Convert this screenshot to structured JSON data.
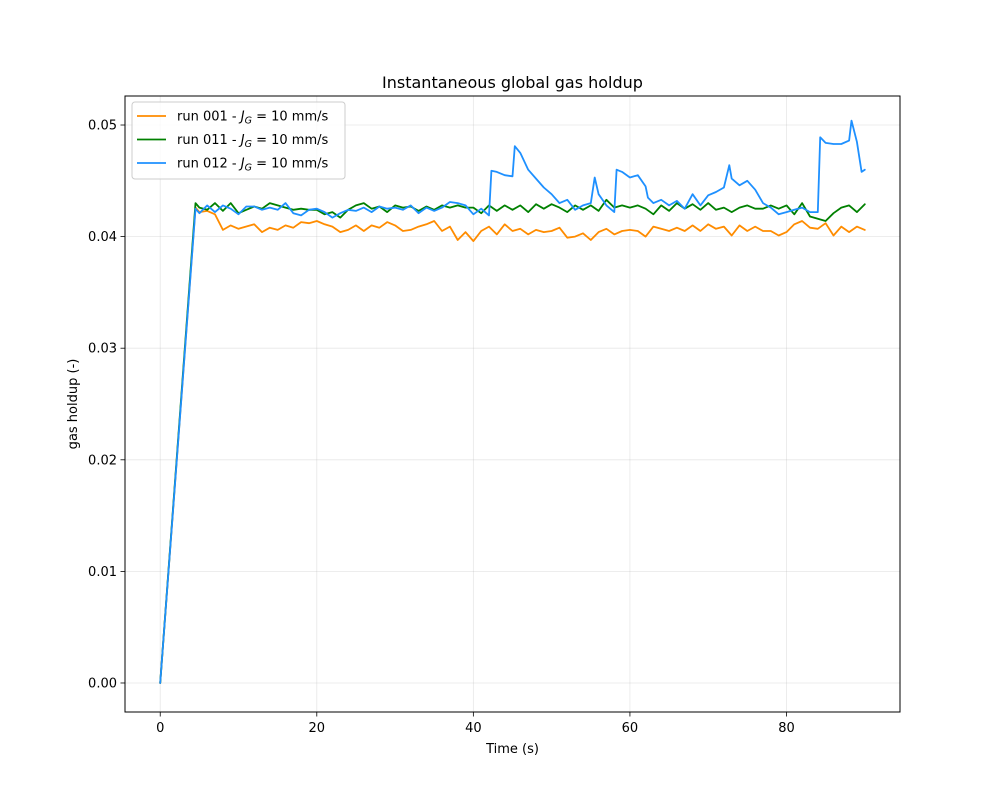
{
  "chart_data": {
    "type": "line",
    "title": "Instantaneous global gas holdup",
    "xlabel": "Time (s)",
    "ylabel": "gas holdup (-)",
    "xlim": [
      -4.5,
      94.5
    ],
    "ylim": [
      -0.0026,
      0.0526
    ],
    "xticks": [
      0,
      20,
      40,
      60,
      80
    ],
    "xtick_labels": [
      "0",
      "20",
      "40",
      "60",
      "80"
    ],
    "yticks": [
      0.0,
      0.01,
      0.02,
      0.03,
      0.04,
      0.05
    ],
    "ytick_labels": [
      "0.00",
      "0.01",
      "0.02",
      "0.03",
      "0.04",
      "0.05"
    ],
    "grid": true,
    "legend_position": "upper-left",
    "series": [
      {
        "name": "run 001 - J_G = 10 mm/s",
        "legend_prefix": "run 001 - ",
        "legend_sym": "J",
        "legend_sub": "G",
        "legend_suffix": " = 10 mm/s",
        "color": "#ff8c00",
        "x": [
          0,
          4.5,
          5,
          6,
          7,
          8,
          9,
          10,
          12,
          13,
          14,
          15,
          16,
          17,
          18,
          19,
          20,
          21,
          22,
          23,
          24,
          25,
          26,
          27,
          28,
          29,
          30,
          31,
          32,
          33,
          34,
          35,
          36,
          37,
          38,
          39,
          40,
          41,
          42,
          43,
          44,
          45,
          46,
          47,
          48,
          49,
          50,
          51,
          52,
          53,
          54,
          55,
          56,
          57,
          58,
          59,
          60,
          61,
          62,
          63,
          64,
          65,
          66,
          67,
          68,
          69,
          70,
          71,
          72,
          73,
          74,
          75,
          76,
          77,
          78,
          79,
          80,
          81,
          82,
          83,
          84,
          85,
          86,
          87,
          88,
          89,
          90
        ],
        "y": [
          0.0,
          0.0426,
          0.0422,
          0.0423,
          0.042,
          0.0406,
          0.041,
          0.0407,
          0.0411,
          0.0404,
          0.0408,
          0.0406,
          0.041,
          0.0408,
          0.0413,
          0.0412,
          0.0414,
          0.0411,
          0.0409,
          0.0404,
          0.0406,
          0.041,
          0.0405,
          0.041,
          0.0408,
          0.0413,
          0.041,
          0.0405,
          0.0406,
          0.0409,
          0.0411,
          0.0414,
          0.0405,
          0.0409,
          0.0397,
          0.0404,
          0.0396,
          0.0405,
          0.0409,
          0.0402,
          0.0411,
          0.0405,
          0.0407,
          0.0402,
          0.0406,
          0.0404,
          0.0405,
          0.0408,
          0.0399,
          0.04,
          0.0403,
          0.0397,
          0.0404,
          0.0407,
          0.0402,
          0.0405,
          0.0406,
          0.0405,
          0.04,
          0.0409,
          0.0407,
          0.0405,
          0.0408,
          0.0405,
          0.041,
          0.0405,
          0.0411,
          0.0407,
          0.0409,
          0.0401,
          0.041,
          0.0405,
          0.0409,
          0.0405,
          0.0405,
          0.0401,
          0.0404,
          0.0411,
          0.0414,
          0.0408,
          0.0407,
          0.0412,
          0.0401,
          0.0409,
          0.0404,
          0.0409,
          0.0406
        ]
      },
      {
        "name": "run 011 - J_G = 10 mm/s",
        "legend_prefix": "run 011 - ",
        "legend_sym": "J",
        "legend_sub": "G",
        "legend_suffix": " = 10 mm/s",
        "color": "#008000",
        "x": [
          0,
          4.5,
          5,
          6,
          7,
          8,
          9,
          10,
          11,
          12,
          13,
          14,
          15,
          16,
          17,
          18,
          19,
          20,
          21,
          22,
          23,
          24,
          25,
          26,
          27,
          28,
          29,
          30,
          31,
          32,
          33,
          34,
          35,
          36,
          37,
          38,
          39,
          40,
          41,
          42,
          43,
          44,
          45,
          46,
          47,
          48,
          49,
          50,
          51,
          52,
          53,
          54,
          55,
          56,
          57,
          58,
          59,
          60,
          61,
          62,
          63,
          64,
          65,
          66,
          67,
          68,
          69,
          70,
          71,
          72,
          73,
          74,
          75,
          76,
          77,
          78,
          79,
          80,
          81,
          82,
          83,
          84,
          85,
          86,
          87,
          88,
          89,
          90
        ],
        "y": [
          0.0,
          0.043,
          0.0426,
          0.0424,
          0.043,
          0.0423,
          0.043,
          0.0421,
          0.0424,
          0.0427,
          0.0425,
          0.043,
          0.0428,
          0.0426,
          0.0424,
          0.0425,
          0.0424,
          0.0424,
          0.042,
          0.0422,
          0.0417,
          0.0424,
          0.0428,
          0.043,
          0.0425,
          0.0427,
          0.0422,
          0.0428,
          0.0426,
          0.0427,
          0.0423,
          0.0427,
          0.0424,
          0.0428,
          0.0426,
          0.0428,
          0.0426,
          0.0426,
          0.0421,
          0.0428,
          0.0423,
          0.0428,
          0.0424,
          0.0428,
          0.0422,
          0.0429,
          0.0425,
          0.0429,
          0.0426,
          0.0422,
          0.0428,
          0.0424,
          0.0428,
          0.0423,
          0.0433,
          0.0426,
          0.0428,
          0.0426,
          0.0428,
          0.0425,
          0.042,
          0.0428,
          0.0423,
          0.043,
          0.0425,
          0.0429,
          0.0424,
          0.043,
          0.0424,
          0.0426,
          0.0422,
          0.0426,
          0.0428,
          0.0425,
          0.0425,
          0.0428,
          0.0425,
          0.0428,
          0.042,
          0.043,
          0.0418,
          0.0416,
          0.0414,
          0.0421,
          0.0426,
          0.0428,
          0.0422,
          0.0429
        ]
      },
      {
        "name": "run 012 - J_G = 10 mm/s",
        "legend_prefix": "run 012 - ",
        "legend_sym": "J",
        "legend_sub": "G",
        "legend_suffix": " = 10 mm/s",
        "color": "#1e90ff",
        "x": [
          0,
          4.5,
          5,
          6,
          7,
          8,
          9,
          10,
          11,
          12,
          13,
          14,
          15,
          16,
          17,
          18,
          19,
          20,
          21,
          22,
          23,
          24,
          25,
          26,
          27,
          28,
          29,
          30,
          31,
          32,
          33,
          34,
          35,
          36,
          37,
          38,
          39,
          40,
          41,
          42,
          42.3,
          43,
          44,
          45,
          45.3,
          46,
          47,
          48,
          49,
          50,
          51,
          52,
          53,
          54,
          55,
          55.5,
          56,
          57,
          58,
          58.3,
          59,
          60,
          61,
          62,
          62.3,
          63,
          64,
          65,
          66,
          67,
          68,
          69,
          70,
          71,
          72,
          72.7,
          73,
          74,
          75,
          76,
          77,
          78,
          79,
          80,
          81,
          82,
          83,
          84,
          84.3,
          85,
          86,
          87,
          88,
          88.3,
          89,
          89.6,
          90
        ],
        "y": [
          0.0,
          0.0425,
          0.0421,
          0.0428,
          0.0422,
          0.0428,
          0.0425,
          0.042,
          0.0427,
          0.0427,
          0.0424,
          0.0426,
          0.0424,
          0.043,
          0.0421,
          0.0419,
          0.0424,
          0.0425,
          0.0422,
          0.0417,
          0.0421,
          0.0424,
          0.0423,
          0.0426,
          0.0422,
          0.0427,
          0.0425,
          0.0426,
          0.0424,
          0.0428,
          0.0421,
          0.0426,
          0.0423,
          0.0426,
          0.0431,
          0.043,
          0.0428,
          0.042,
          0.0425,
          0.0419,
          0.0459,
          0.0458,
          0.0455,
          0.0454,
          0.0481,
          0.0475,
          0.046,
          0.0452,
          0.0444,
          0.0438,
          0.043,
          0.0433,
          0.0424,
          0.0428,
          0.043,
          0.0453,
          0.0438,
          0.0428,
          0.0422,
          0.046,
          0.0458,
          0.0453,
          0.0455,
          0.0445,
          0.0435,
          0.043,
          0.0433,
          0.0428,
          0.0432,
          0.0425,
          0.0438,
          0.0428,
          0.0437,
          0.044,
          0.0444,
          0.0464,
          0.0452,
          0.0446,
          0.045,
          0.0442,
          0.043,
          0.0426,
          0.042,
          0.0422,
          0.0424,
          0.0426,
          0.0422,
          0.0422,
          0.0489,
          0.0484,
          0.0483,
          0.0483,
          0.0486,
          0.0504,
          0.0485,
          0.0458,
          0.046
        ]
      }
    ]
  }
}
